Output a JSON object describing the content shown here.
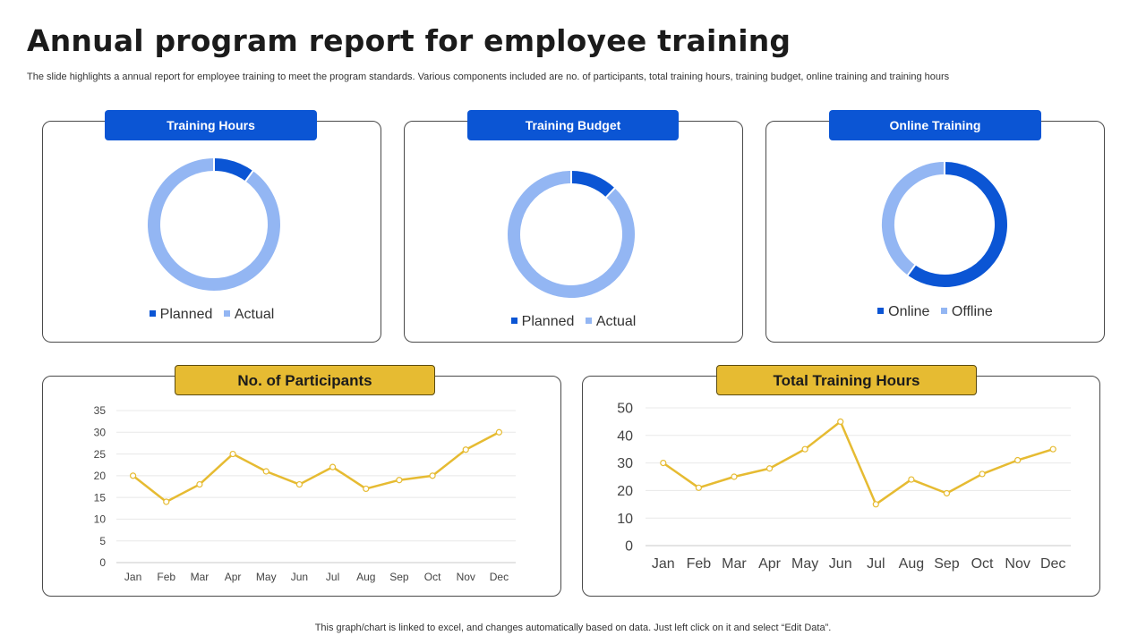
{
  "header": {
    "title": "Annual program report for employee training",
    "subtitle": "The slide highlights a annual report for employee training to meet the program standards. Various components included are no. of participants, total training hours, training budget, online training and training hours"
  },
  "colors": {
    "dark_blue": "#0b55d4",
    "light_blue": "#93b6f3",
    "gold": "#e6bb32"
  },
  "chart_data": [
    {
      "type": "pie",
      "title": "Training Hours",
      "categories": [
        "Planned",
        "Actual"
      ],
      "values": [
        10,
        90
      ],
      "legend": "bottom"
    },
    {
      "type": "pie",
      "title": "Training Budget",
      "categories": [
        "Planned",
        "Actual"
      ],
      "values": [
        12,
        88
      ],
      "legend": "bottom"
    },
    {
      "type": "pie",
      "title": "Online Training",
      "categories": [
        "Online",
        "Offline"
      ],
      "values": [
        60,
        40
      ],
      "legend": "bottom"
    },
    {
      "type": "line",
      "title": "No. of Participants",
      "categories": [
        "Jan",
        "Feb",
        "Mar",
        "Apr",
        "May",
        "Jun",
        "Jul",
        "Aug",
        "Sep",
        "Oct",
        "Nov",
        "Dec"
      ],
      "values": [
        20,
        14,
        18,
        25,
        21,
        18,
        22,
        17,
        19,
        20,
        26,
        30
      ],
      "ylim": [
        0,
        35
      ],
      "yticks": [
        0,
        5,
        10,
        15,
        20,
        25,
        30,
        35
      ],
      "grid": true
    },
    {
      "type": "line",
      "title": "Total Training Hours",
      "categories": [
        "Jan",
        "Feb",
        "Mar",
        "Apr",
        "May",
        "Jun",
        "Jul",
        "Aug",
        "Sep",
        "Oct",
        "Nov",
        "Dec"
      ],
      "values": [
        30,
        21,
        25,
        28,
        35,
        45,
        15,
        24,
        19,
        26,
        31,
        35
      ],
      "ylim": [
        0,
        50
      ],
      "yticks": [
        0,
        10,
        20,
        30,
        40,
        50
      ],
      "grid": true
    }
  ],
  "footnote": "This graph/chart is linked to excel,  and changes automatically based on data. Just left click on it and select “Edit Data”."
}
